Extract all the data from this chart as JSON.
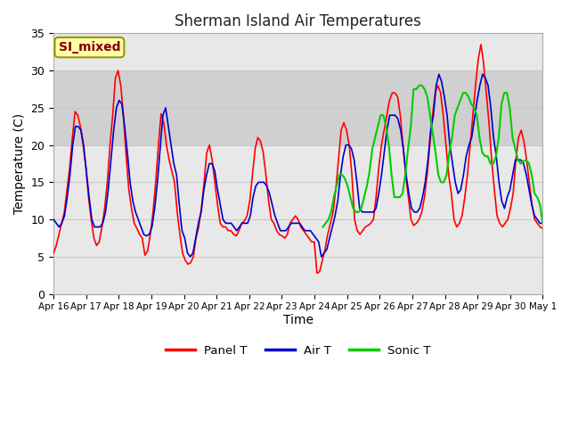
{
  "title": "Sherman Island Air Temperatures",
  "xlabel": "Time",
  "ylabel": "Temperature (C)",
  "ylim": [
    0,
    35
  ],
  "fig_bg": "#ffffff",
  "plot_bg": "#e8e8e8",
  "shaded_band": [
    20,
    30
  ],
  "shaded_color": "#d0d0d0",
  "grid_color": "#c8c8c8",
  "annotation_text": "SI_mixed",
  "annotation_bg": "#ffffaa",
  "annotation_border": "#999900",
  "annotation_text_color": "#880000",
  "line_colors": {
    "panel": "#ff0000",
    "air": "#0000cc",
    "sonic": "#00cc00"
  },
  "line_widths": {
    "panel": 1.2,
    "air": 1.2,
    "sonic": 1.5
  },
  "legend_labels": [
    "Panel T",
    "Air T",
    "Sonic T"
  ],
  "x_tick_labels": [
    "Apr 16",
    "Apr 17",
    "Apr 18",
    "Apr 19",
    "Apr 20",
    "Apr 21",
    "Apr 22",
    "Apr 23",
    "Apr 24",
    "Apr 25",
    "Apr 26",
    "Apr 27",
    "Apr 28",
    "Apr 29",
    "Apr 30",
    "May 1"
  ],
  "panel_t": [
    5.5,
    6.5,
    8.0,
    9.5,
    11.0,
    14.0,
    17.0,
    21.0,
    24.5,
    24.0,
    22.5,
    20.0,
    17.0,
    13.0,
    10.0,
    7.5,
    6.5,
    7.0,
    9.0,
    11.5,
    15.0,
    20.0,
    24.0,
    29.0,
    30.0,
    28.0,
    24.0,
    18.5,
    14.0,
    11.5,
    9.5,
    8.8,
    8.0,
    7.5,
    5.2,
    5.8,
    8.0,
    11.0,
    15.0,
    20.0,
    24.2,
    23.0,
    20.0,
    18.0,
    16.5,
    15.0,
    11.0,
    8.0,
    5.5,
    4.5,
    4.0,
    4.2,
    5.0,
    7.5,
    9.0,
    11.5,
    15.0,
    19.0,
    20.0,
    18.0,
    15.0,
    12.0,
    9.5,
    9.0,
    9.0,
    8.5,
    8.5,
    8.0,
    7.8,
    8.5,
    9.5,
    9.8,
    10.5,
    12.5,
    16.0,
    19.5,
    21.0,
    20.5,
    19.0,
    16.0,
    12.5,
    10.0,
    9.5,
    8.5,
    8.0,
    7.8,
    7.5,
    8.0,
    9.5,
    10.0,
    10.5,
    10.0,
    9.0,
    8.5,
    8.0,
    7.5,
    7.0,
    7.0,
    2.8,
    3.0,
    4.5,
    6.0,
    8.0,
    9.5,
    11.0,
    14.0,
    18.0,
    22.0,
    23.0,
    22.0,
    20.0,
    16.0,
    10.0,
    8.5,
    8.0,
    8.5,
    9.0,
    9.2,
    9.5,
    10.0,
    13.0,
    17.0,
    20.0,
    22.0,
    24.0,
    26.0,
    27.0,
    27.0,
    26.5,
    24.0,
    20.0,
    16.0,
    13.0,
    10.0,
    9.2,
    9.5,
    10.0,
    11.0,
    13.0,
    16.0,
    20.0,
    24.0,
    27.0,
    28.0,
    27.0,
    24.0,
    20.0,
    16.0,
    13.5,
    10.0,
    9.0,
    9.5,
    10.5,
    13.0,
    16.0,
    20.0,
    24.0,
    28.0,
    31.5,
    33.5,
    31.0,
    27.0,
    23.0,
    18.0,
    14.0,
    10.5,
    9.5,
    9.0,
    9.5,
    10.0,
    11.5,
    13.5,
    18.0,
    21.0,
    22.0,
    20.5,
    18.0,
    15.0,
    12.0,
    10.0,
    9.5,
    9.0,
    8.8
  ],
  "air_t": [
    10.0,
    9.5,
    9.0,
    9.5,
    10.5,
    13.0,
    16.0,
    20.0,
    22.5,
    22.5,
    22.0,
    20.0,
    16.5,
    13.0,
    10.0,
    9.0,
    9.0,
    9.0,
    9.5,
    11.0,
    14.0,
    18.0,
    22.0,
    25.0,
    26.0,
    25.5,
    22.5,
    19.0,
    15.0,
    12.5,
    11.0,
    10.0,
    9.0,
    8.0,
    7.8,
    8.0,
    9.0,
    11.5,
    15.0,
    19.5,
    24.0,
    25.0,
    22.5,
    20.0,
    17.5,
    16.0,
    12.0,
    8.5,
    7.5,
    5.5,
    5.0,
    5.5,
    7.5,
    9.5,
    11.0,
    14.0,
    16.0,
    17.5,
    17.5,
    16.5,
    14.0,
    12.0,
    10.0,
    9.5,
    9.5,
    9.5,
    9.0,
    8.5,
    9.0,
    9.5,
    9.5,
    9.5,
    10.5,
    13.0,
    14.5,
    15.0,
    15.0,
    15.0,
    14.5,
    13.5,
    12.0,
    10.5,
    9.5,
    8.5,
    8.5,
    8.5,
    9.0,
    9.5,
    9.5,
    9.5,
    9.5,
    9.0,
    8.5,
    8.5,
    8.5,
    8.0,
    7.5,
    7.0,
    5.0,
    5.5,
    6.0,
    7.5,
    9.0,
    10.5,
    12.5,
    16.0,
    18.5,
    20.0,
    20.0,
    19.5,
    18.0,
    15.0,
    11.5,
    11.0,
    11.0,
    11.0,
    11.0,
    11.0,
    11.5,
    13.5,
    16.0,
    19.0,
    22.0,
    24.0,
    24.0,
    24.0,
    23.5,
    22.0,
    19.5,
    16.0,
    13.5,
    11.5,
    11.0,
    11.0,
    11.5,
    13.0,
    15.0,
    18.0,
    22.0,
    24.0,
    28.0,
    29.5,
    28.5,
    26.5,
    24.0,
    20.0,
    17.5,
    15.0,
    13.5,
    14.0,
    16.0,
    18.5,
    20.0,
    21.0,
    23.5,
    26.0,
    28.0,
    29.5,
    29.0,
    28.0,
    25.0,
    21.0,
    18.5,
    15.0,
    12.5,
    11.5,
    13.0,
    14.0,
    16.0,
    18.0,
    18.0,
    18.0,
    17.5,
    16.0,
    14.0,
    12.0,
    10.5,
    10.0,
    9.5,
    9.5
  ],
  "sonic_t": [
    null,
    null,
    null,
    null,
    null,
    null,
    null,
    null,
    null,
    null,
    null,
    null,
    null,
    null,
    null,
    null,
    null,
    null,
    null,
    null,
    null,
    null,
    null,
    null,
    null,
    null,
    null,
    null,
    null,
    null,
    null,
    null,
    null,
    null,
    null,
    null,
    null,
    null,
    null,
    null,
    null,
    null,
    null,
    null,
    null,
    null,
    null,
    null,
    null,
    null,
    null,
    null,
    null,
    null,
    null,
    null,
    null,
    null,
    null,
    null,
    null,
    null,
    null,
    null,
    null,
    null,
    null,
    null,
    null,
    null,
    null,
    null,
    null,
    null,
    null,
    null,
    null,
    null,
    null,
    null,
    null,
    null,
    null,
    null,
    null,
    null,
    null,
    null,
    null,
    null,
    null,
    null,
    null,
    null,
    null,
    null,
    null,
    null,
    9.0,
    9.5,
    10.0,
    11.0,
    13.0,
    14.5,
    16.0,
    16.0,
    15.5,
    14.5,
    13.0,
    11.5,
    11.0,
    11.0,
    11.5,
    13.0,
    14.5,
    16.5,
    19.5,
    21.0,
    22.5,
    24.0,
    24.0,
    22.5,
    20.0,
    16.0,
    13.0,
    13.0,
    13.0,
    13.5,
    16.0,
    19.5,
    22.5,
    27.5,
    27.5,
    28.0,
    28.0,
    27.5,
    26.5,
    24.0,
    21.5,
    19.0,
    16.0,
    15.0,
    15.0,
    16.0,
    19.0,
    21.0,
    24.0,
    25.0,
    26.0,
    27.0,
    27.0,
    26.5,
    25.5,
    25.0,
    24.0,
    21.0,
    19.0,
    18.5,
    18.5,
    17.5,
    17.5,
    18.5,
    21.0,
    25.5,
    27.0,
    27.0,
    25.0,
    21.0,
    19.5,
    18.0,
    17.5,
    17.8,
    18.0,
    17.5,
    16.0,
    13.5,
    13.0,
    12.0,
    9.5
  ]
}
